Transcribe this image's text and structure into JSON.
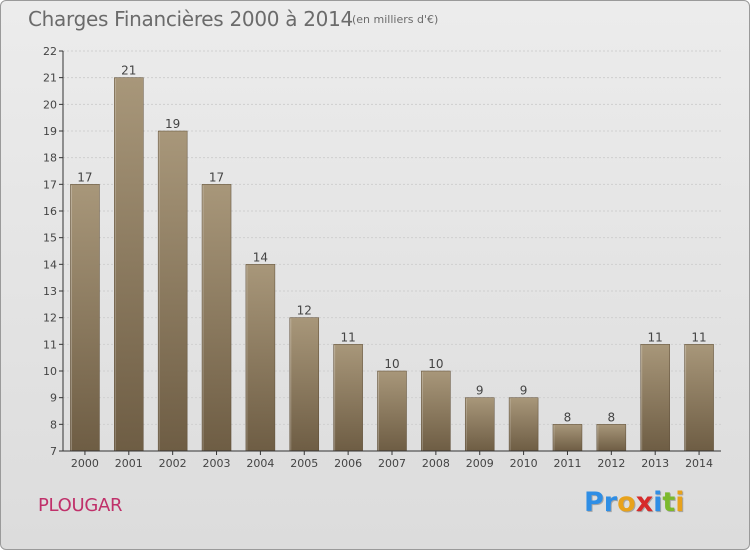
{
  "header": {
    "title": "Charges Financières 2000 à 2014",
    "subtitle": "(en milliers d'€)"
  },
  "footer": {
    "commune": "PLOUGAR",
    "logo_text": "Proxiti",
    "logo_colors": [
      "#2f8ee5",
      "#2f8ee5",
      "#e8a21b",
      "#d62b2b",
      "#2f8ee5",
      "#7cb92c",
      "#e8a21b"
    ]
  },
  "colors": {
    "bar_top": "#a8977a",
    "bar_bottom": "#6e5d44",
    "axis": "#333333",
    "grid": "#cfcfcf",
    "title": "#6b6b6b",
    "commune": "#c0306a"
  },
  "chart_data": {
    "type": "bar",
    "title": "Charges Financières 2000 à 2014",
    "subtitle": "(en milliers d'€)",
    "xlabel": "",
    "ylabel": "",
    "categories": [
      "2000",
      "2001",
      "2002",
      "2003",
      "2004",
      "2005",
      "2006",
      "2007",
      "2008",
      "2009",
      "2010",
      "2011",
      "2012",
      "2013",
      "2014"
    ],
    "values": [
      17,
      21,
      19,
      17,
      14,
      12,
      11,
      10,
      10,
      9,
      9,
      8,
      8,
      11,
      11
    ],
    "ylim": [
      7,
      22
    ],
    "yticks": [
      7,
      8,
      9,
      10,
      11,
      12,
      13,
      14,
      15,
      16,
      17,
      18,
      19,
      20,
      21,
      22
    ],
    "grid": true,
    "data_labels": true
  }
}
